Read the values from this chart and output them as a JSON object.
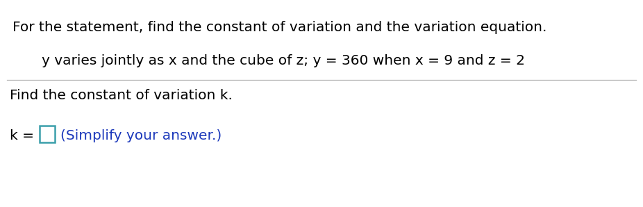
{
  "title_text": "For the statement, find the constant of variation and the variation equation.",
  "subtitle_text": "y varies jointly as x and the cube of z; y = 360 when x = 9 and z = 2",
  "instruction_text": "Find the constant of variation k.",
  "k_label": "k = ",
  "hint_text": "(Simplify your answer.)",
  "background_color": "#ffffff",
  "title_color": "#000000",
  "subtitle_color": "#000000",
  "instruction_color": "#000000",
  "hint_color": "#1c39bb",
  "box_edge_color": "#3a9faa",
  "separator_color": "#b0b0b0",
  "title_fontsize": 14.5,
  "subtitle_fontsize": 14.5,
  "instruction_fontsize": 14.5,
  "hint_fontsize": 14.5,
  "k_fontsize": 14.5,
  "fig_width": 9.26,
  "fig_height": 2.98,
  "dpi": 100
}
